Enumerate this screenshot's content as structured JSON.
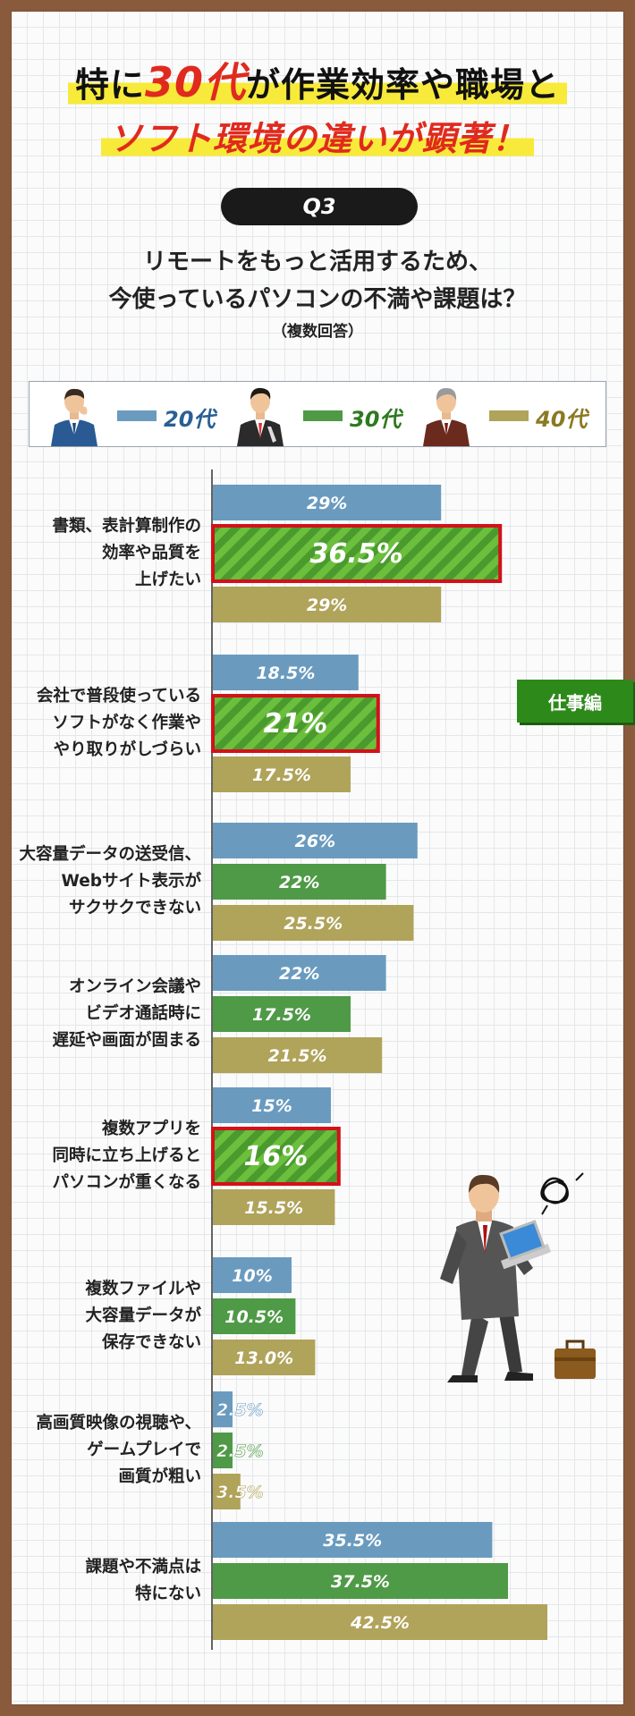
{
  "headline": {
    "line1_prefix": "特に",
    "line1_highlight": "30代",
    "line1_suffix": "が作業効率や職場と",
    "line2_main": "ソフト環境の違いが顕著",
    "line2_mark": "！"
  },
  "question": {
    "badge": "Q3",
    "line1": "リモートをもっと活用するため、",
    "line2": "今使っているパソコンの不満や課題は？",
    "note": "（複数回答）"
  },
  "tag": "仕事編",
  "colors": {
    "s20": "#6a9bbf",
    "s30": "#4e9a46",
    "s40": "#b0a35a",
    "highlight_border": "#d4101a",
    "frame": "#8a5a3c"
  },
  "legend": [
    {
      "label": "20代",
      "color": "#6a9bbf",
      "text_color": "#2a5f96",
      "icon": "person-20s-icon"
    },
    {
      "label": "30代",
      "color": "#4e9a46",
      "text_color": "#2e7a1f",
      "icon": "person-30s-icon"
    },
    {
      "label": "40代",
      "color": "#b0a35a",
      "text_color": "#8a7a22",
      "icon": "person-40s-icon"
    }
  ],
  "chart_data": {
    "type": "bar",
    "orientation": "horizontal",
    "series_names": [
      "20代",
      "30代",
      "40代"
    ],
    "categories": [
      "書類、表計算制作の\n効率や品質を\n上げたい",
      "会社で普段使っている\nソフトがなく作業や\nやり取りがしづらい",
      "大容量データの送受信、\nWebサイト表示が\nサクサクできない",
      "オンライン会議や\nビデオ通話時に\n遅延や画面が固まる",
      "複数アプリを\n同時に立ち上げると\nパソコンが重くなる",
      "複数ファイルや\n大容量データが\n保存できない",
      "高画質映像の視聴や、\nゲームプレイで\n画質が粗い",
      "課題や不満点は\n特にない"
    ],
    "values": [
      [
        29,
        36.5,
        29
      ],
      [
        18.5,
        21,
        17.5
      ],
      [
        26,
        22,
        25.5
      ],
      [
        22,
        17.5,
        21.5
      ],
      [
        15,
        16,
        15.5
      ],
      [
        10,
        10.5,
        13.0
      ],
      [
        2.5,
        2.5,
        3.5
      ],
      [
        35.5,
        37.5,
        42.5
      ]
    ],
    "labels": [
      [
        "29%",
        "36.5%",
        "29%"
      ],
      [
        "18.5%",
        "21%",
        "17.5%"
      ],
      [
        "26%",
        "22%",
        "25.5%"
      ],
      [
        "22%",
        "17.5%",
        "21.5%"
      ],
      [
        "15%",
        "16%",
        "15.5%"
      ],
      [
        "10%",
        "10.5%",
        "13.0%"
      ],
      [
        "2.5%",
        "2.5%",
        "3.5%"
      ],
      [
        "35.5%",
        "37.5%",
        "42.5%"
      ]
    ],
    "highlighted": [
      [
        0,
        1
      ],
      [
        1,
        1
      ],
      [
        4,
        1
      ]
    ],
    "unit": "%"
  }
}
